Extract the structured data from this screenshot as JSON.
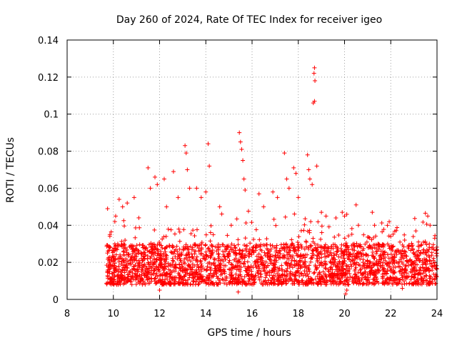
{
  "chart_data": {
    "type": "scatter",
    "title": "Day 260 of 2024, Rate Of TEC Index for receiver igeo",
    "xlabel": "GPS time / hours",
    "ylabel": "ROTI / TECUs",
    "xlim": [
      8,
      24
    ],
    "ylim": [
      0,
      0.14
    ],
    "xticks": [
      8,
      10,
      12,
      14,
      16,
      18,
      20,
      22,
      24
    ],
    "yticks": [
      0,
      0.02,
      0.04,
      0.06,
      0.08,
      0.1,
      0.12,
      0.14
    ],
    "xtick_labels": [
      "8",
      "10",
      "12",
      "14",
      "16",
      "18",
      "20",
      "22",
      "24"
    ],
    "ytick_labels": [
      "0",
      "0.02",
      "0.04",
      "0.06",
      "0.08",
      "0.1",
      "0.12",
      "0.14"
    ],
    "grid": true,
    "marker": "+",
    "color": "#ff0000",
    "series": [
      {
        "name": "ROTI",
        "data_start_hour": 9.7,
        "data_end_hour": 24.0,
        "typical_range": [
          0.008,
          0.03
        ],
        "points": [
          [
            9.75,
            0.049
          ],
          [
            9.85,
            0.035
          ],
          [
            10.1,
            0.045
          ],
          [
            10.25,
            0.054
          ],
          [
            10.4,
            0.05
          ],
          [
            10.6,
            0.052
          ],
          [
            10.9,
            0.055
          ],
          [
            11.1,
            0.044
          ],
          [
            11.5,
            0.071
          ],
          [
            11.6,
            0.06
          ],
          [
            11.8,
            0.066
          ],
          [
            11.9,
            0.062
          ],
          [
            12.2,
            0.065
          ],
          [
            12.3,
            0.05
          ],
          [
            12.6,
            0.069
          ],
          [
            12.8,
            0.055
          ],
          [
            13.1,
            0.083
          ],
          [
            13.15,
            0.079
          ],
          [
            13.2,
            0.07
          ],
          [
            13.3,
            0.06
          ],
          [
            13.6,
            0.06
          ],
          [
            13.8,
            0.055
          ],
          [
            14.0,
            0.058
          ],
          [
            14.1,
            0.084
          ],
          [
            14.15,
            0.072
          ],
          [
            14.6,
            0.05
          ],
          [
            15.1,
            0.04
          ],
          [
            15.45,
            0.09
          ],
          [
            15.5,
            0.085
          ],
          [
            15.55,
            0.081
          ],
          [
            15.6,
            0.075
          ],
          [
            15.65,
            0.065
          ],
          [
            15.7,
            0.059
          ],
          [
            16.3,
            0.057
          ],
          [
            16.5,
            0.05
          ],
          [
            16.9,
            0.058
          ],
          [
            17.1,
            0.055
          ],
          [
            17.4,
            0.079
          ],
          [
            17.5,
            0.065
          ],
          [
            17.6,
            0.06
          ],
          [
            17.8,
            0.071
          ],
          [
            17.9,
            0.068
          ],
          [
            18.0,
            0.055
          ],
          [
            18.4,
            0.078
          ],
          [
            18.45,
            0.07
          ],
          [
            18.5,
            0.065
          ],
          [
            18.6,
            0.062
          ],
          [
            18.65,
            0.106
          ],
          [
            18.7,
            0.107
          ],
          [
            18.72,
            0.118
          ],
          [
            18.68,
            0.122
          ],
          [
            18.7,
            0.125
          ],
          [
            18.8,
            0.072
          ],
          [
            19.0,
            0.047
          ],
          [
            19.2,
            0.045
          ],
          [
            19.9,
            0.047
          ],
          [
            20.0,
            0.045
          ],
          [
            20.5,
            0.051
          ],
          [
            20.6,
            0.04
          ],
          [
            21.2,
            0.047
          ],
          [
            21.3,
            0.04
          ],
          [
            22.0,
            0.034
          ],
          [
            22.6,
            0.032
          ],
          [
            23.2,
            0.031
          ],
          [
            23.6,
            0.045
          ],
          [
            23.7,
            0.04
          ],
          [
            23.9,
            0.033
          ],
          [
            20.05,
            0.003
          ],
          [
            20.1,
            0.005
          ],
          [
            15.4,
            0.004
          ],
          [
            12.0,
            0.005
          ],
          [
            22.5,
            0.006
          ]
        ]
      }
    ]
  }
}
